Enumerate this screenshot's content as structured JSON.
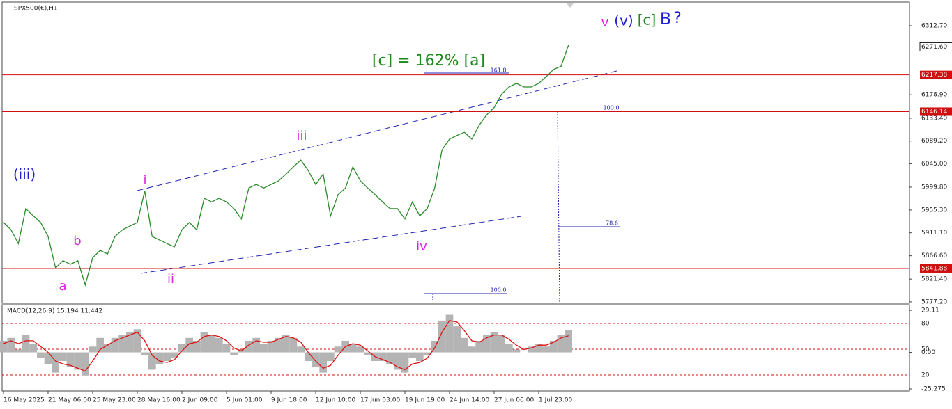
{
  "header": "SPX500(€),H1",
  "chart_data": [
    {
      "type": "line",
      "color": "#2a8a2a",
      "categories": [
        "16 May 2025",
        null,
        null,
        null,
        null,
        null,
        "21 May 06:00",
        null,
        null,
        null,
        null,
        null,
        "25 May 23:00",
        null,
        null,
        null,
        null,
        null,
        "28 May 16:00",
        null,
        null,
        null,
        null,
        null,
        "2 Jun 09:00",
        null,
        null,
        null,
        null,
        null,
        "5 Jun 01:00",
        null,
        null,
        null,
        null,
        null,
        "9 Jun 18:00",
        null,
        null,
        null,
        null,
        null,
        "12 Jun 10:00",
        null,
        null,
        null,
        null,
        null,
        "17 Jun 03:00",
        null,
        null,
        null,
        null,
        null,
        "19 Jun 19:00",
        null,
        null,
        null,
        null,
        null,
        "24 Jun 14:00",
        null,
        null,
        null,
        null,
        null,
        "27 Jun 06:00",
        null,
        null,
        null,
        null,
        null,
        "1 Jul 23:00",
        null,
        null,
        null,
        null
      ],
      "values": [
        5931,
        5917,
        5890,
        5958,
        5944,
        5931,
        5904,
        5843,
        5857,
        5850,
        5857,
        5810,
        5863,
        5877,
        5870,
        5904,
        5917,
        5924,
        5931,
        5992,
        5904,
        5897,
        5890,
        5884,
        5917,
        5931,
        5917,
        5978,
        5971,
        5978,
        5971,
        5958,
        5938,
        5998,
        6005,
        5998,
        6005,
        6012,
        6025,
        6039,
        6052,
        6032,
        6005,
        6025,
        5944,
        5985,
        5998,
        6039,
        6012,
        5998,
        5985,
        5971,
        5958,
        5958,
        5938,
        5971,
        5944,
        5958,
        5998,
        6072,
        6093,
        6100,
        6106,
        6093,
        6120,
        6140,
        6154,
        6180,
        6194,
        6201,
        6194,
        6194,
        6201,
        6214,
        6228,
        6234,
        6275
      ],
      "ylim": [
        5774.4,
        6358.6
      ],
      "yticks": [
        {
          "value": 6312.7,
          "label": "6312.70"
        },
        {
          "value": 6178.9,
          "label": "6178.90"
        },
        {
          "value": 6133.4,
          "label": "6133.40"
        },
        {
          "value": 6089.2,
          "label": "6089.20"
        },
        {
          "value": 6045,
          "label": "6045.00"
        },
        {
          "value": 5999.8,
          "label": "5999.80"
        },
        {
          "value": 5955.3,
          "label": "5955.30"
        },
        {
          "value": 5911.1,
          "label": "5911.10"
        },
        {
          "value": 5866.6,
          "label": "5866.60"
        },
        {
          "value": 5821.4,
          "label": "5821.40"
        },
        {
          "value": 5777.2,
          "label": "5777.20"
        }
      ],
      "last_price": {
        "value": 6271.6,
        "label": "6271.60",
        "color": "#999999"
      },
      "hlines": [
        {
          "value": 6217.38,
          "color": "#d01010"
        },
        {
          "value": 6146.14,
          "color": "#d01010"
        },
        {
          "value": 5841.88,
          "color": "#d01010"
        }
      ],
      "annotations": [
        {
          "text": "(iii)",
          "color": "#1f1fd0"
        },
        {
          "text": "a",
          "color": "#e020e0"
        },
        {
          "text": "b",
          "color": "#e020e0"
        },
        {
          "text": "i",
          "color": "#e020e0"
        },
        {
          "text": "ii",
          "color": "#e020e0"
        },
        {
          "text": "iii",
          "color": "#e020e0"
        },
        {
          "text": "iv",
          "color": "#e020e0"
        },
        {
          "text": "[c] = 162% [a]",
          "color": "#1a8a1a"
        },
        {
          "text": "v",
          "color": "#e020e0"
        },
        {
          "text": "(v)",
          "color": "#1f1fd0"
        },
        {
          "text": "[c]",
          "color": "#1a8a1a"
        },
        {
          "text": "B",
          "color": "#1f1fd0"
        },
        {
          "text": "?",
          "color": "#1f1fd0"
        }
      ],
      "fib_labels": [
        "161.8",
        "100.0",
        "78.6",
        "100.0"
      ]
    },
    {
      "type": "bar",
      "title": "MACD(12,26,9) 15.194 11.442",
      "color": "#b4b4b4",
      "values": [
        8,
        10,
        2,
        12,
        6,
        -4,
        -8,
        -14,
        -6,
        -10,
        -12,
        -16,
        4,
        10,
        6,
        10,
        12,
        14,
        16,
        -2,
        -12,
        -8,
        -6,
        -4,
        6,
        10,
        8,
        14,
        12,
        10,
        6,
        -2,
        2,
        8,
        10,
        6,
        8,
        10,
        12,
        10,
        4,
        -6,
        -10,
        -14,
        -6,
        4,
        8,
        6,
        4,
        -2,
        -6,
        -6,
        -8,
        -12,
        -14,
        -4,
        -6,
        -2,
        8,
        22,
        26,
        18,
        10,
        4,
        8,
        12,
        14,
        12,
        6,
        2,
        0,
        4,
        6,
        4,
        8,
        12,
        15.194
      ],
      "signal": {
        "color": "#e01010",
        "values": [
          6,
          8,
          6,
          8,
          8,
          4,
          0,
          -6,
          -8,
          -9,
          -11,
          -13,
          -6,
          2,
          5,
          8,
          10,
          12,
          14,
          8,
          -2,
          -6,
          -7,
          -5,
          1,
          6,
          7,
          11,
          12,
          11,
          8,
          3,
          1,
          5,
          8,
          7,
          7,
          9,
          11,
          10,
          7,
          0,
          -6,
          -11,
          -9,
          -2,
          4,
          6,
          5,
          1,
          -3,
          -5,
          -7,
          -10,
          -12,
          -8,
          -7,
          -4,
          3,
          14,
          22,
          21,
          15,
          8,
          7,
          10,
          12,
          12,
          9,
          5,
          2,
          3,
          5,
          5,
          7,
          10,
          11.442
        ]
      },
      "ylim": [
        -26.7,
        33
      ],
      "yticks": [
        29.11,
        {
          "value": 0,
          "label": "0.00"
        },
        -25.275
      ],
      "y2lim": [
        1.3,
        101.9
      ],
      "y2ticks": [
        80,
        50,
        20
      ]
    }
  ]
}
